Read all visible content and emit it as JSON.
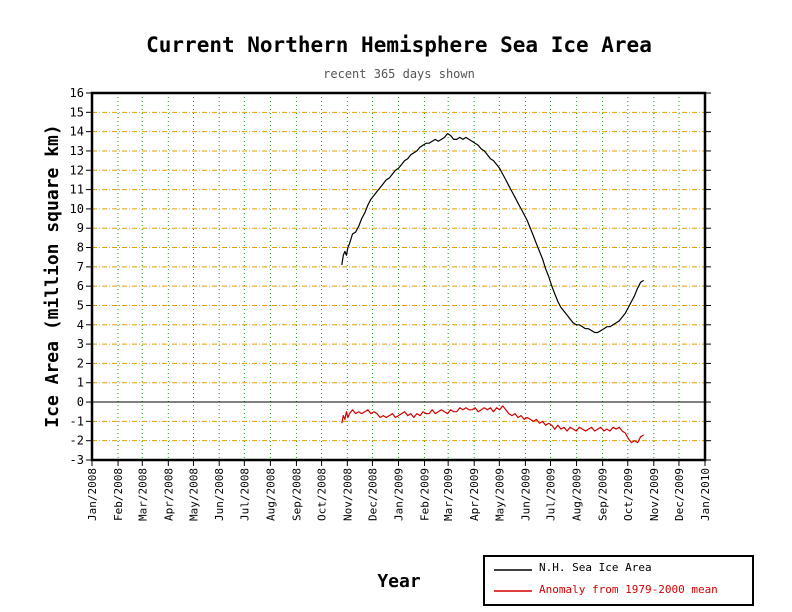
{
  "chart_data": {
    "type": "line",
    "title": "Current Northern Hemisphere Sea Ice Area",
    "subtitle": "recent 365 days shown",
    "xlabel": "Year",
    "ylabel": "Ice Area (million square km)",
    "ylim": [
      -3,
      16
    ],
    "yticks": [
      16,
      15,
      14,
      13,
      12,
      11,
      10,
      9,
      8,
      7,
      6,
      5,
      4,
      3,
      2,
      1,
      0,
      -1,
      -2,
      -3
    ],
    "xlim": [
      2008.0,
      2010.0
    ],
    "xticks": [
      {
        "label": "Jan/2008",
        "x": 2008.0
      },
      {
        "label": "Feb/2008",
        "x": 2008.085
      },
      {
        "label": "Mar/2008",
        "x": 2008.164
      },
      {
        "label": "Apr/2008",
        "x": 2008.249
      },
      {
        "label": "May/2008",
        "x": 2008.331
      },
      {
        "label": "Jun/2008",
        "x": 2008.415
      },
      {
        "label": "Jul/2008",
        "x": 2008.497
      },
      {
        "label": "Aug/2008",
        "x": 2008.582
      },
      {
        "label": "Sep/2008",
        "x": 2008.667
      },
      {
        "label": "Oct/2008",
        "x": 2008.749
      },
      {
        "label": "Nov/2008",
        "x": 2008.833
      },
      {
        "label": "Dec/2008",
        "x": 2008.915
      },
      {
        "label": "Jan/2009",
        "x": 2009.0
      },
      {
        "label": "Feb/2009",
        "x": 2009.085
      },
      {
        "label": "Mar/2009",
        "x": 2009.162
      },
      {
        "label": "Apr/2009",
        "x": 2009.247
      },
      {
        "label": "May/2009",
        "x": 2009.329
      },
      {
        "label": "Jun/2009",
        "x": 2009.414
      },
      {
        "label": "Jul/2009",
        "x": 2009.496
      },
      {
        "label": "Aug/2009",
        "x": 2009.581
      },
      {
        "label": "Sep/2009",
        "x": 2009.666
      },
      {
        "label": "Oct/2009",
        "x": 2009.748
      },
      {
        "label": "Nov/2009",
        "x": 2009.833
      },
      {
        "label": "Dec/2009",
        "x": 2009.915
      },
      {
        "label": "Jan/2010",
        "x": 2010.0
      }
    ],
    "grid": true,
    "legend_position": "bottom-right",
    "series": [
      {
        "name": "N.H. Sea Ice Area",
        "color": "#000000",
        "x": [
          2008.815,
          2008.82,
          2008.825,
          2008.83,
          2008.835,
          2008.84,
          2008.85,
          2008.86,
          2008.87,
          2008.88,
          2008.89,
          2008.9,
          2008.91,
          2008.92,
          2008.93,
          2008.94,
          2008.95,
          2008.96,
          2008.97,
          2008.98,
          2008.99,
          2009.0,
          2009.01,
          2009.02,
          2009.03,
          2009.04,
          2009.05,
          2009.06,
          2009.07,
          2009.08,
          2009.09,
          2009.1,
          2009.11,
          2009.12,
          2009.13,
          2009.14,
          2009.15,
          2009.16,
          2009.17,
          2009.18,
          2009.19,
          2009.2,
          2009.21,
          2009.22,
          2009.23,
          2009.24,
          2009.25,
          2009.26,
          2009.27,
          2009.28,
          2009.29,
          2009.3,
          2009.31,
          2009.32,
          2009.33,
          2009.34,
          2009.35,
          2009.36,
          2009.37,
          2009.38,
          2009.39,
          2009.4,
          2009.41,
          2009.42,
          2009.43,
          2009.44,
          2009.45,
          2009.46,
          2009.47,
          2009.48,
          2009.49,
          2009.5,
          2009.51,
          2009.52,
          2009.53,
          2009.54,
          2009.55,
          2009.56,
          2009.57,
          2009.58,
          2009.59,
          2009.6,
          2009.61,
          2009.62,
          2009.63,
          2009.64,
          2009.65,
          2009.66,
          2009.67,
          2009.68,
          2009.69,
          2009.7,
          2009.71,
          2009.72,
          2009.73,
          2009.74,
          2009.75,
          2009.76,
          2009.77,
          2009.78,
          2009.79,
          2009.8
        ],
        "y": [
          7.1,
          7.6,
          7.8,
          7.6,
          8.0,
          8.2,
          8.7,
          8.8,
          9.1,
          9.5,
          9.8,
          10.2,
          10.5,
          10.7,
          10.9,
          11.1,
          11.3,
          11.5,
          11.6,
          11.8,
          12.0,
          12.1,
          12.3,
          12.5,
          12.6,
          12.8,
          12.9,
          13.0,
          13.2,
          13.3,
          13.4,
          13.4,
          13.5,
          13.6,
          13.5,
          13.6,
          13.7,
          13.9,
          13.8,
          13.6,
          13.6,
          13.7,
          13.6,
          13.7,
          13.6,
          13.5,
          13.4,
          13.3,
          13.1,
          13.0,
          12.8,
          12.6,
          12.5,
          12.3,
          12.1,
          11.8,
          11.5,
          11.2,
          10.9,
          10.6,
          10.3,
          10.0,
          9.7,
          9.4,
          9.0,
          8.6,
          8.2,
          7.8,
          7.4,
          6.9,
          6.5,
          6.0,
          5.6,
          5.2,
          4.9,
          4.7,
          4.5,
          4.3,
          4.1,
          4.0,
          4.0,
          3.9,
          3.8,
          3.8,
          3.7,
          3.6,
          3.6,
          3.7,
          3.8,
          3.9,
          3.9,
          4.0,
          4.1,
          4.2,
          4.4,
          4.6,
          4.9,
          5.2,
          5.5,
          5.9,
          6.2,
          6.3
        ]
      },
      {
        "name": "Anomaly from 1979-2000 mean",
        "color": "#d40000",
        "x": [
          2008.815,
          2008.82,
          2008.825,
          2008.83,
          2008.835,
          2008.84,
          2008.85,
          2008.86,
          2008.87,
          2008.88,
          2008.89,
          2008.9,
          2008.91,
          2008.92,
          2008.93,
          2008.94,
          2008.95,
          2008.96,
          2008.97,
          2008.98,
          2008.99,
          2009.0,
          2009.01,
          2009.02,
          2009.03,
          2009.04,
          2009.05,
          2009.06,
          2009.07,
          2009.08,
          2009.09,
          2009.1,
          2009.11,
          2009.12,
          2009.13,
          2009.14,
          2009.15,
          2009.16,
          2009.17,
          2009.18,
          2009.19,
          2009.2,
          2009.21,
          2009.22,
          2009.23,
          2009.24,
          2009.25,
          2009.26,
          2009.27,
          2009.28,
          2009.29,
          2009.3,
          2009.31,
          2009.32,
          2009.33,
          2009.34,
          2009.35,
          2009.36,
          2009.37,
          2009.38,
          2009.39,
          2009.4,
          2009.41,
          2009.42,
          2009.43,
          2009.44,
          2009.45,
          2009.46,
          2009.47,
          2009.48,
          2009.49,
          2009.5,
          2009.51,
          2009.52,
          2009.53,
          2009.54,
          2009.55,
          2009.56,
          2009.57,
          2009.58,
          2009.59,
          2009.6,
          2009.61,
          2009.62,
          2009.63,
          2009.64,
          2009.65,
          2009.66,
          2009.67,
          2009.68,
          2009.69,
          2009.7,
          2009.71,
          2009.72,
          2009.73,
          2009.74,
          2009.75,
          2009.76,
          2009.77,
          2009.78,
          2009.79,
          2009.8
        ],
        "y": [
          -1.1,
          -0.7,
          -0.9,
          -0.5,
          -0.8,
          -0.6,
          -0.4,
          -0.6,
          -0.5,
          -0.6,
          -0.5,
          -0.4,
          -0.6,
          -0.5,
          -0.6,
          -0.8,
          -0.7,
          -0.8,
          -0.7,
          -0.6,
          -0.8,
          -0.7,
          -0.6,
          -0.5,
          -0.7,
          -0.6,
          -0.8,
          -0.6,
          -0.7,
          -0.5,
          -0.6,
          -0.6,
          -0.4,
          -0.6,
          -0.5,
          -0.4,
          -0.5,
          -0.6,
          -0.4,
          -0.5,
          -0.5,
          -0.3,
          -0.4,
          -0.3,
          -0.4,
          -0.4,
          -0.3,
          -0.5,
          -0.4,
          -0.3,
          -0.4,
          -0.3,
          -0.5,
          -0.3,
          -0.4,
          -0.2,
          -0.4,
          -0.6,
          -0.7,
          -0.6,
          -0.8,
          -0.7,
          -0.9,
          -0.8,
          -0.9,
          -1.0,
          -0.9,
          -1.1,
          -1.0,
          -1.2,
          -1.1,
          -1.2,
          -1.4,
          -1.2,
          -1.4,
          -1.3,
          -1.5,
          -1.3,
          -1.4,
          -1.5,
          -1.3,
          -1.4,
          -1.5,
          -1.4,
          -1.3,
          -1.5,
          -1.4,
          -1.3,
          -1.5,
          -1.4,
          -1.5,
          -1.3,
          -1.4,
          -1.3,
          -1.5,
          -1.6,
          -1.9,
          -2.1,
          -2.0,
          -2.1,
          -1.8,
          -1.7
        ]
      }
    ]
  }
}
